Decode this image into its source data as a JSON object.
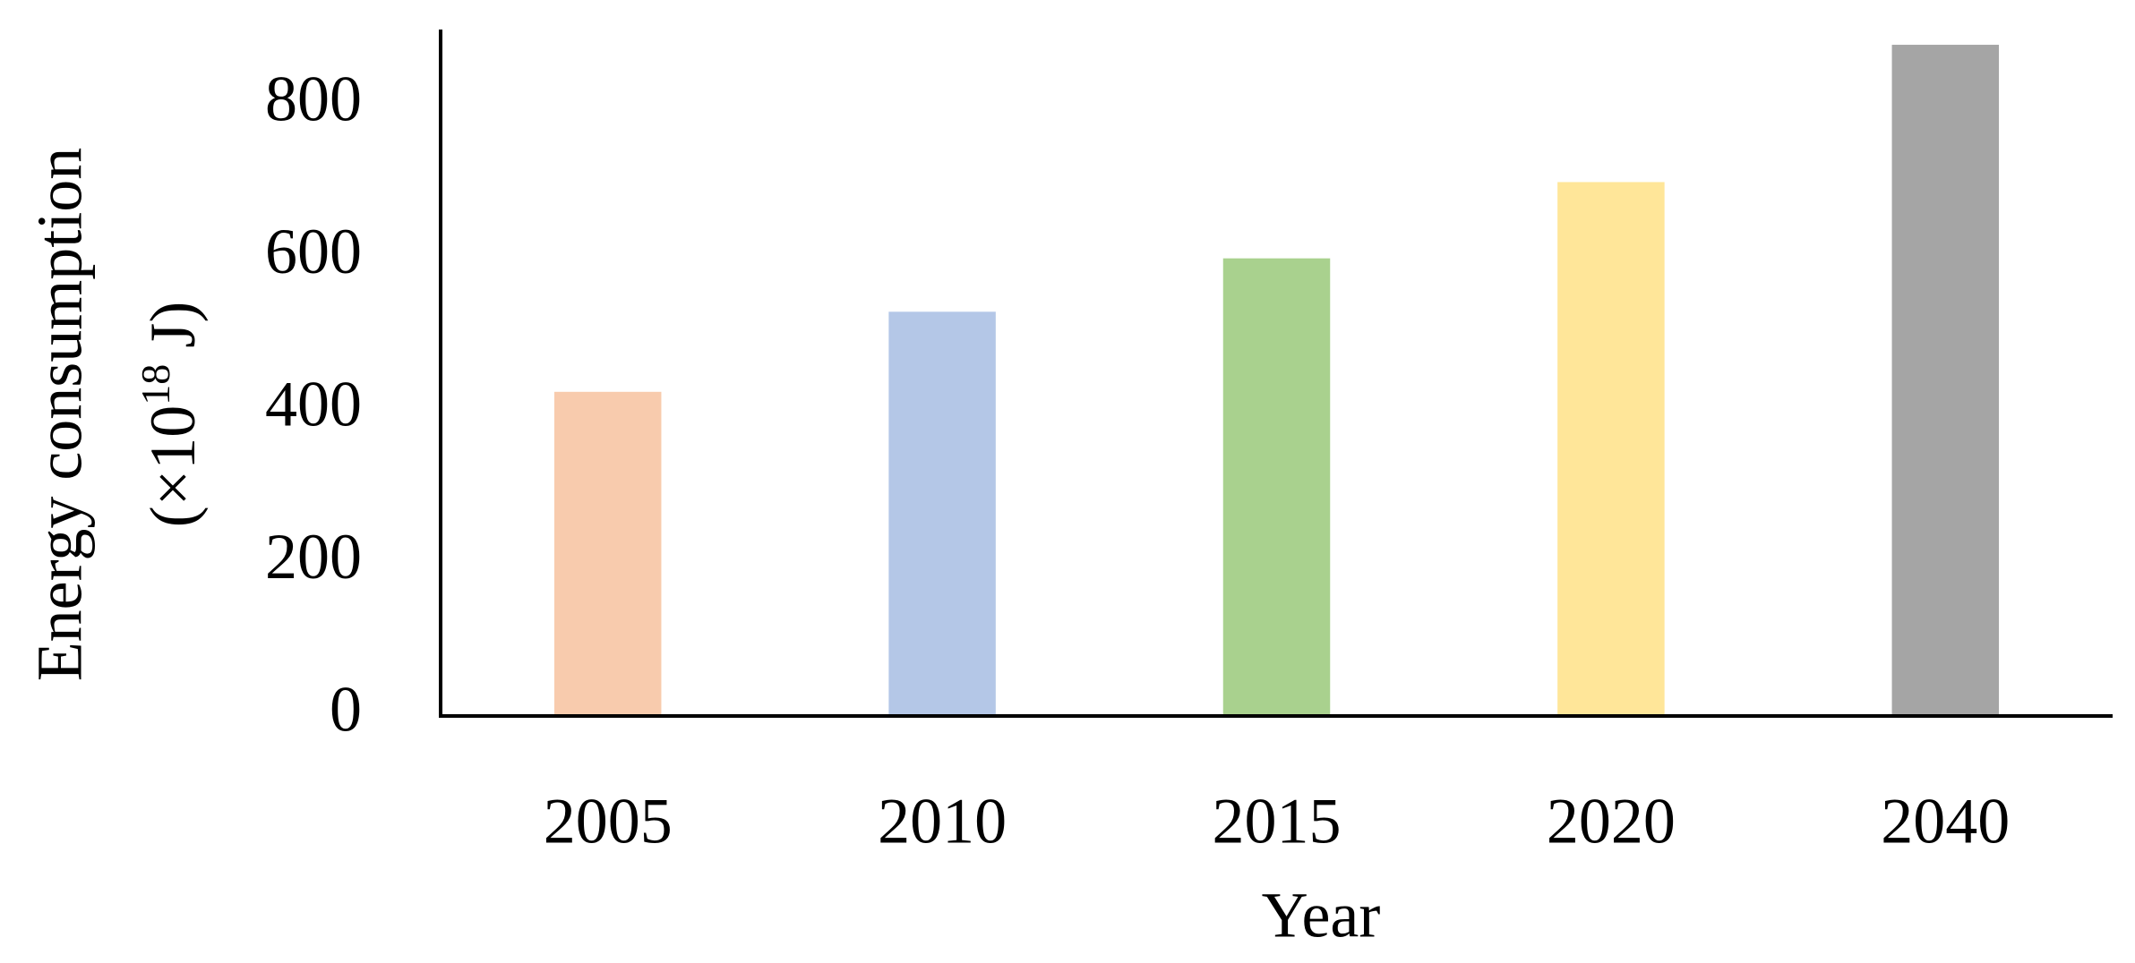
{
  "chart_data": {
    "type": "bar",
    "xlabel": "Year",
    "ylabel": {
      "main": "Energy consumption",
      "unit_start": "(×10",
      "unit_exponent": "18",
      "unit_end": " J)"
    },
    "categories": [
      "2005",
      "2010",
      "2015",
      "2020",
      "2040"
    ],
    "values": [
      425,
      530,
      600,
      700,
      880
    ],
    "colors": [
      "#f8cbad",
      "#b4c7e7",
      "#a9d18e",
      "#ffe699",
      "#a5a5a5"
    ],
    "ylim": [
      0,
      900
    ],
    "yticks": [
      0,
      200,
      400,
      600,
      800
    ],
    "grid": false
  }
}
